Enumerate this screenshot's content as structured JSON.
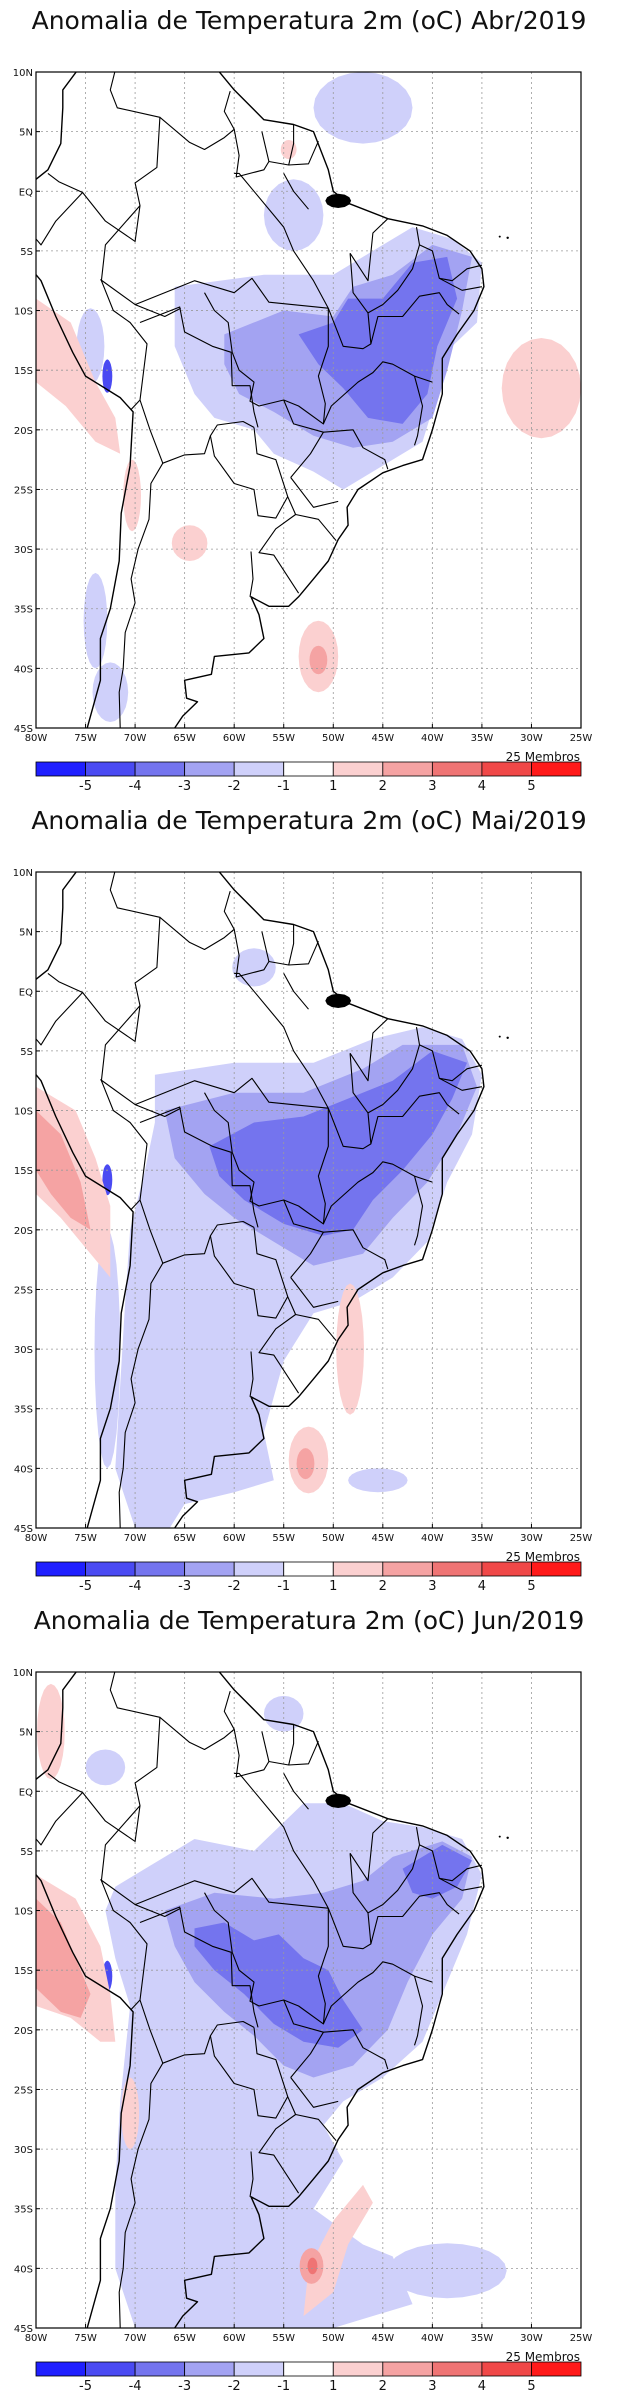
{
  "colors": {
    "neg5": "#1f1fff",
    "neg4": "#4a4af2",
    "neg3": "#7474ee",
    "neg2": "#a3a3f2",
    "neg1": "#cfd0fa",
    "zero": "#ffffff",
    "pos1": "#fbd0d0",
    "pos2": "#f5a3a3",
    "pos3": "#ef7474",
    "pos4": "#f04848",
    "pos5": "#ff1a1a",
    "border": "#000000",
    "grid": "#9a9a9a"
  },
  "axes": {
    "lat_labels": [
      "10N",
      "5N",
      "EQ",
      "5S",
      "10S",
      "15S",
      "20S",
      "25S",
      "30S",
      "35S",
      "40S",
      "45S"
    ],
    "lon_labels": [
      "80W",
      "75W",
      "70W",
      "65W",
      "60W",
      "55W",
      "50W",
      "45W",
      "40W",
      "35W",
      "30W",
      "25W"
    ]
  },
  "colorbar": {
    "labels": [
      "-5",
      "-4",
      "-3",
      "-2",
      "-1",
      "1",
      "2",
      "3",
      "4",
      "5"
    ]
  },
  "panels": [
    {
      "title": "Anomalia de Temperatura 2m (oC) Abr/2019",
      "members_label": "25 Membros"
    },
    {
      "title": "Anomalia de Temperatura 2m (oC) Mai/2019",
      "members_label": "25 Membros"
    },
    {
      "title": "Anomalia de Temperatura 2m (oC) Jun/2019",
      "members_label": "25 Membros"
    }
  ]
}
